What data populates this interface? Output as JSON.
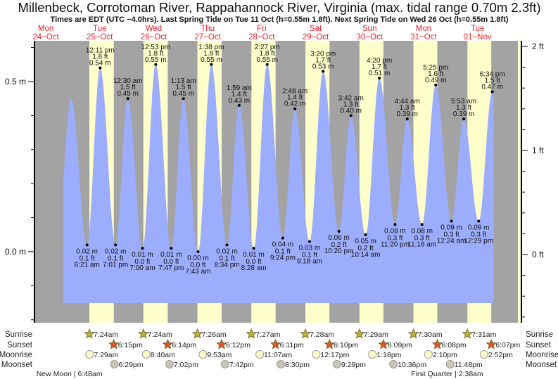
{
  "header": {
    "title": "Millenbeck, Corrotoman River, Rappahannock River, Virginia (max. tidal range 0.70m 2.3ft)",
    "subtitle": "Times are EDT (UTC −4.0hrs). Last Spring Tide on Tue 11 Oct (h=0.55m 1.8ft). Next Spring Tide on Wed 26 Oct (h=0.55m 1.8ft)"
  },
  "colors": {
    "night": "#a3a3a3",
    "day": "#ffffcc",
    "water": "#9dadfd",
    "day_label": "#e8202a",
    "sunrise": "#b8b43a",
    "sunset": "#e2542a",
    "moonrise": "#ffffc8",
    "moonset": "#c9c5b4"
  },
  "days": [
    {
      "name": "Mon",
      "date": "24−Oct"
    },
    {
      "name": "Tue",
      "date": "25−Oct",
      "sunrise": "7:24am",
      "sunset": "6:15pm",
      "moonrise": "7:29am",
      "moonset": "6:29pm"
    },
    {
      "name": "Wed",
      "date": "26−Oct",
      "sunrise": "7:24am",
      "sunset": "6:14pm",
      "moonrise": "8:40am",
      "moonset": "7:02pm"
    },
    {
      "name": "Thu",
      "date": "27−Oct",
      "sunrise": "7:26am",
      "sunset": "6:12pm",
      "moonrise": "9:53am",
      "moonset": "7:42pm"
    },
    {
      "name": "Fri",
      "date": "28−Oct",
      "sunrise": "7:27am",
      "sunset": "6:11pm",
      "moonrise": "11:07am",
      "moonset": "8:30pm"
    },
    {
      "name": "Sat",
      "date": "29−Oct",
      "sunrise": "7:28am",
      "sunset": "6:10pm",
      "moonrise": "12:17pm",
      "moonset": "9:29pm"
    },
    {
      "name": "Sun",
      "date": "30−Oct",
      "sunrise": "7:29am",
      "sunset": "6:09pm",
      "moonrise": "1:18pm",
      "moonset": "10:36pm"
    },
    {
      "name": "Mon",
      "date": "31−Oct",
      "sunrise": "7:30am",
      "sunset": "6:08pm",
      "moonrise": "2:10pm",
      "moonset": "11:48pm"
    },
    {
      "name": "Tue",
      "date": "01−Nov",
      "sunrise": "7:31am",
      "sunset": "6:07pm",
      "moonrise": "2:52pm"
    }
  ],
  "row_labels": {
    "sunrise": "Sunrise",
    "sunset": "Sunset",
    "moonrise": "Moonrise",
    "moonset": "Moonset"
  },
  "moon_phases": [
    {
      "day": 1,
      "label": "New Moon | 6:48am"
    },
    {
      "day": 8,
      "label": "First Quarter | 2:38am"
    }
  ],
  "chart_data": {
    "type": "area",
    "title": "Millenbeck, Corrotoman River, Rappahannock River, Virginia (max. tidal range 0.70m 2.3ft)",
    "ylabel_left": "m",
    "ylabel_right": "ft",
    "left_ticks": [
      "0.5 m",
      "0.0 m"
    ],
    "right_ticks": [
      "2 ft",
      "1 ft",
      "0 ft"
    ],
    "ylim_m": [
      -0.21,
      0.62
    ],
    "extremes": [
      {
        "day": 0,
        "time": "11:15 pm",
        "type": "high",
        "m": 0.45,
        "ft": null,
        "labeled": false
      },
      {
        "day": 1,
        "time": "6:21 am",
        "type": "low",
        "m": 0.02,
        "ft": "0.1 ft",
        "m_label": "0.02 m"
      },
      {
        "day": 1,
        "time": "12:11 pm",
        "type": "high",
        "m": 0.54,
        "ft": "1.8 ft",
        "m_label": "0.54 m"
      },
      {
        "day": 1,
        "time": "7:01 pm",
        "type": "low",
        "m": 0.02,
        "ft": "0.1 ft",
        "m_label": "0.02 m"
      },
      {
        "day": 2,
        "time": "12:30 am",
        "type": "high",
        "m": 0.45,
        "ft": "1.5 ft",
        "m_label": "0.45 m"
      },
      {
        "day": 2,
        "time": "7:00 am",
        "type": "low",
        "m": 0.01,
        "ft": "0.0 ft",
        "m_label": "0.01 m"
      },
      {
        "day": 2,
        "time": "12:53 pm",
        "type": "high",
        "m": 0.55,
        "ft": "1.8 ft",
        "m_label": "0.55 m"
      },
      {
        "day": 2,
        "time": "7:47 pm",
        "type": "low",
        "m": 0.01,
        "ft": "0.0 ft",
        "m_label": "0.01 m"
      },
      {
        "day": 3,
        "time": "1:13 am",
        "type": "high",
        "m": 0.45,
        "ft": "1.5 ft",
        "m_label": "0.45 m"
      },
      {
        "day": 3,
        "time": "7:43 am",
        "type": "low",
        "m": 0.0,
        "ft": "0.0 ft",
        "m_label": "0.00 m"
      },
      {
        "day": 3,
        "time": "1:38 pm",
        "type": "high",
        "m": 0.55,
        "ft": "1.8 ft",
        "m_label": "0.55 m"
      },
      {
        "day": 3,
        "time": "8:34 pm",
        "type": "low",
        "m": 0.02,
        "ft": "0.1 ft",
        "m_label": "0.02 m"
      },
      {
        "day": 4,
        "time": "1:59 am",
        "type": "high",
        "m": 0.43,
        "ft": "1.4 ft",
        "m_label": "0.43 m"
      },
      {
        "day": 4,
        "time": "8:28 am",
        "type": "low",
        "m": 0.01,
        "ft": "0.0 ft",
        "m_label": "0.01 m"
      },
      {
        "day": 4,
        "time": "2:27 pm",
        "type": "high",
        "m": 0.55,
        "ft": "1.8 ft",
        "m_label": "0.55 m"
      },
      {
        "day": 4,
        "time": "9:24 pm",
        "type": "low",
        "m": 0.04,
        "ft": "0.1 ft",
        "m_label": "0.04 m"
      },
      {
        "day": 5,
        "time": "2:48 am",
        "type": "high",
        "m": 0.42,
        "ft": "1.4 ft",
        "m_label": "0.42 m"
      },
      {
        "day": 5,
        "time": "9:18 am",
        "type": "low",
        "m": 0.03,
        "ft": "0.1 ft",
        "m_label": "0.03 m"
      },
      {
        "day": 5,
        "time": "3:20 pm",
        "type": "high",
        "m": 0.53,
        "ft": "1.7 ft",
        "m_label": "0.53 m"
      },
      {
        "day": 5,
        "time": "10:20 pm",
        "type": "low",
        "m": 0.06,
        "ft": "0.2 ft",
        "m_label": "0.06 m"
      },
      {
        "day": 6,
        "time": "3:42 am",
        "type": "high",
        "m": 0.4,
        "ft": "1.3 ft",
        "m_label": "0.40 m"
      },
      {
        "day": 6,
        "time": "10:14 am",
        "type": "low",
        "m": 0.05,
        "ft": "0.2 ft",
        "m_label": "0.05 m"
      },
      {
        "day": 6,
        "time": "4:20 pm",
        "type": "high",
        "m": 0.51,
        "ft": "1.7 ft",
        "m_label": "0.51 m"
      },
      {
        "day": 6,
        "time": "11:20 pm",
        "type": "low",
        "m": 0.08,
        "ft": "0.3 ft",
        "m_label": "0.08 m"
      },
      {
        "day": 7,
        "time": "4:44 am",
        "type": "high",
        "m": 0.39,
        "ft": "1.3 ft",
        "m_label": "0.39 m"
      },
      {
        "day": 7,
        "time": "11:18 am",
        "type": "low",
        "m": 0.08,
        "ft": "0.3 ft",
        "m_label": "0.08 m"
      },
      {
        "day": 7,
        "time": "5:25 pm",
        "type": "high",
        "m": 0.49,
        "ft": "1.6 ft",
        "m_label": "0.49 m"
      },
      {
        "day": 8,
        "time": "12:24 am",
        "type": "low",
        "m": 0.09,
        "ft": "0.3 ft",
        "m_label": "0.09 m"
      },
      {
        "day": 8,
        "time": "5:53 am",
        "type": "high",
        "m": 0.39,
        "ft": "1.3 ft",
        "m_label": "0.39 m"
      },
      {
        "day": 8,
        "time": "12:29 pm",
        "type": "low",
        "m": 0.09,
        "ft": "0.3 ft",
        "m_label": "0.09 m"
      },
      {
        "day": 8,
        "time": "6:34 pm",
        "type": "high",
        "m": 0.47,
        "ft": "1.5 ft",
        "m_label": "0.47 m"
      }
    ]
  }
}
